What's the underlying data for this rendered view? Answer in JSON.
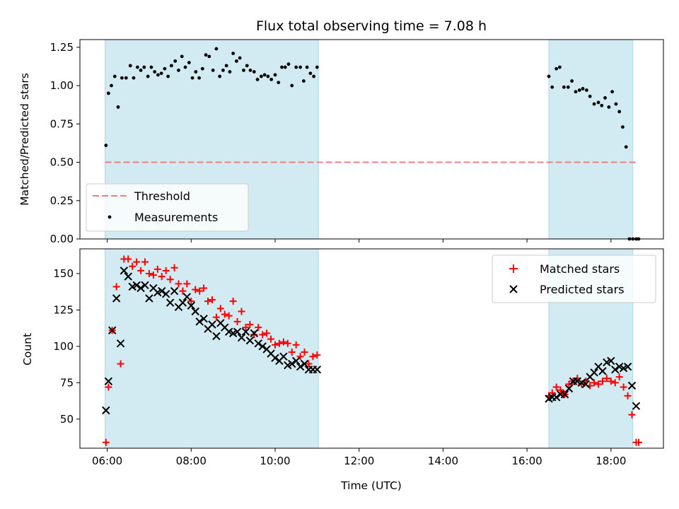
{
  "chart_data": {
    "title": "Flux total observing time = 7.08 h",
    "xlabel": "Time (UTC)",
    "x_unit": "hours UTC",
    "xlim": [
      5.35,
      19.25
    ],
    "x_ticks": [
      6,
      8,
      10,
      12,
      14,
      16,
      18
    ],
    "x_tick_labels": [
      "06:00",
      "08:00",
      "10:00",
      "12:00",
      "14:00",
      "16:00",
      "18:00"
    ],
    "shaded_color": "#add8e6",
    "observing_windows": [
      [
        5.95,
        11.03
      ],
      [
        16.52,
        18.52
      ]
    ],
    "top": {
      "type": "scatter",
      "ylabel": "Matched/Predicted stars",
      "ylim": [
        0,
        1.3
      ],
      "y_ticks": [
        0,
        0.25,
        0.5,
        0.75,
        1.0,
        1.25
      ],
      "y_tick_labels": [
        "0.00",
        "0.25",
        "0.50",
        "0.75",
        "1.00",
        "1.25"
      ],
      "threshold": {
        "name": "Threshold",
        "value": 0.5,
        "x_range": [
          5.95,
          18.65
        ],
        "color": "#f08080"
      },
      "legend_position": "lower-left",
      "series": [
        {
          "name": "Measurements",
          "color": "#000000",
          "x": [
            5.97,
            6.03,
            6.1,
            6.18,
            6.26,
            6.35,
            6.45,
            6.55,
            6.63,
            6.72,
            6.8,
            6.88,
            6.97,
            7.05,
            7.13,
            7.21,
            7.29,
            7.37,
            7.45,
            7.53,
            7.62,
            7.7,
            7.78,
            7.86,
            7.95,
            8.03,
            8.11,
            8.19,
            8.27,
            8.35,
            8.43,
            8.52,
            8.6,
            8.68,
            8.76,
            8.84,
            8.92,
            9.0,
            9.08,
            9.16,
            9.25,
            9.33,
            9.41,
            9.5,
            9.58,
            9.67,
            9.75,
            9.83,
            9.91,
            10.0,
            10.08,
            10.16,
            10.24,
            10.32,
            10.4,
            10.5,
            10.6,
            10.68,
            10.76,
            10.84,
            10.92,
            11.0,
            16.52,
            16.6,
            16.7,
            16.78,
            16.88,
            16.98,
            17.07,
            17.16,
            17.25,
            17.33,
            17.42,
            17.5,
            17.6,
            17.7,
            17.78,
            17.86,
            17.95,
            18.03,
            18.12,
            18.2,
            18.28,
            18.36,
            18.44,
            18.52,
            18.6,
            18.66
          ],
          "y": [
            0.61,
            0.95,
            1.0,
            1.06,
            0.86,
            1.05,
            1.05,
            1.13,
            1.05,
            1.12,
            1.1,
            1.12,
            1.06,
            1.12,
            1.09,
            1.07,
            1.08,
            1.11,
            1.06,
            1.13,
            1.16,
            1.1,
            1.19,
            1.12,
            1.15,
            1.05,
            1.09,
            1.05,
            1.11,
            1.2,
            1.19,
            1.1,
            1.24,
            1.06,
            1.1,
            1.13,
            1.09,
            1.21,
            1.16,
            1.18,
            1.1,
            1.13,
            1.1,
            1.09,
            1.04,
            1.06,
            1.07,
            1.06,
            1.04,
            1.07,
            1.02,
            1.12,
            1.12,
            1.14,
            1.0,
            1.12,
            1.12,
            1.03,
            1.12,
            1.08,
            1.06,
            1.12,
            1.06,
            0.99,
            1.11,
            1.12,
            0.99,
            0.99,
            1.03,
            0.96,
            0.97,
            0.98,
            0.97,
            0.93,
            0.88,
            0.89,
            0.87,
            0.92,
            0.86,
            0.96,
            0.88,
            0.83,
            0.73,
            0.6,
            0.0,
            0.0,
            0.0,
            0.0
          ]
        }
      ]
    },
    "bottom": {
      "type": "scatter",
      "ylabel": "Count",
      "ylim": [
        30,
        167
      ],
      "y_ticks": [
        50,
        75,
        100,
        125,
        150
      ],
      "y_tick_labels": [
        "50",
        "75",
        "100",
        "125",
        "150"
      ],
      "legend_position": "top-right",
      "series": [
        {
          "name": "Matched stars",
          "color": "#ff0000",
          "marker": "plus",
          "x": [
            5.97,
            6.03,
            6.12,
            6.22,
            6.32,
            6.4,
            6.5,
            6.6,
            6.7,
            6.8,
            6.9,
            7.0,
            7.1,
            7.2,
            7.3,
            7.4,
            7.5,
            7.6,
            7.7,
            7.8,
            7.9,
            8.0,
            8.1,
            8.2,
            8.3,
            8.4,
            8.5,
            8.6,
            8.7,
            8.8,
            8.9,
            9.0,
            9.1,
            9.2,
            9.3,
            9.4,
            9.5,
            9.6,
            9.7,
            9.8,
            9.9,
            10.0,
            10.1,
            10.2,
            10.3,
            10.4,
            10.5,
            10.6,
            10.7,
            10.8,
            10.9,
            11.0,
            16.52,
            16.6,
            16.7,
            16.8,
            16.9,
            17.0,
            17.1,
            17.2,
            17.3,
            17.4,
            17.5,
            17.6,
            17.7,
            17.8,
            17.9,
            18.0,
            18.1,
            18.2,
            18.3,
            18.4,
            18.5,
            18.6,
            18.66
          ],
          "y": [
            34,
            72,
            111,
            141,
            88,
            160,
            160,
            155,
            158,
            152,
            158,
            150,
            149,
            153,
            148,
            152,
            146,
            154,
            143,
            138,
            143,
            131,
            139,
            138,
            140,
            131,
            132,
            120,
            126,
            122,
            121,
            131,
            117,
            124,
            113,
            115,
            108,
            113,
            108,
            109,
            105,
            101,
            102,
            103,
            102,
            96,
            101,
            93,
            96,
            88,
            93,
            94,
            66,
            68,
            72,
            70,
            67,
            74,
            76,
            78,
            74,
            76,
            73,
            75,
            74,
            76,
            78,
            76,
            75,
            79,
            72,
            66,
            53,
            34,
            34
          ]
        },
        {
          "name": "Predicted stars",
          "color": "#000000",
          "marker": "x",
          "x": [
            5.97,
            6.03,
            6.12,
            6.22,
            6.32,
            6.4,
            6.5,
            6.6,
            6.7,
            6.8,
            6.9,
            7.0,
            7.1,
            7.2,
            7.3,
            7.4,
            7.5,
            7.6,
            7.7,
            7.8,
            7.9,
            8.0,
            8.1,
            8.2,
            8.3,
            8.4,
            8.5,
            8.6,
            8.7,
            8.8,
            8.9,
            9.0,
            9.1,
            9.2,
            9.3,
            9.4,
            9.5,
            9.6,
            9.7,
            9.8,
            9.9,
            10.0,
            10.1,
            10.2,
            10.3,
            10.4,
            10.5,
            10.6,
            10.7,
            10.8,
            10.9,
            11.0,
            16.52,
            16.6,
            16.7,
            16.8,
            16.9,
            17.0,
            17.1,
            17.2,
            17.3,
            17.4,
            17.5,
            17.6,
            17.7,
            17.8,
            17.9,
            18.0,
            18.1,
            18.2,
            18.3,
            18.4,
            18.5,
            18.6
          ],
          "y": [
            56,
            76,
            111,
            133,
            102,
            152,
            148,
            141,
            142,
            140,
            142,
            133,
            140,
            137,
            138,
            136,
            130,
            138,
            127,
            130,
            134,
            128,
            124,
            117,
            119,
            112,
            115,
            107,
            116,
            113,
            110,
            109,
            110,
            106,
            110,
            104,
            109,
            102,
            100,
            98,
            95,
            92,
            90,
            93,
            87,
            88,
            90,
            86,
            88,
            84,
            84,
            84,
            64,
            65,
            65,
            67,
            67,
            71,
            76,
            76,
            75,
            74,
            79,
            82,
            86,
            83,
            89,
            90,
            84,
            86,
            85,
            86,
            73,
            59
          ]
        }
      ]
    }
  }
}
